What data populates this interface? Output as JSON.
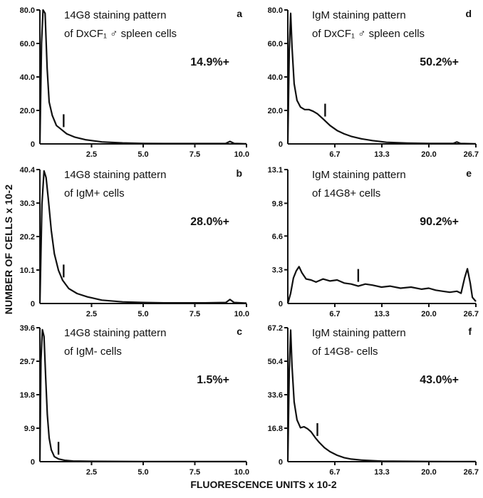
{
  "figure": {
    "ylabel": "NUMBER OF CELLS x 10-2",
    "xlabel": "FLUORESCENCE UNITS x 10-2"
  },
  "chart_data": [
    {
      "type": "line",
      "letter": "a",
      "caption1": "14G8 staining pattern",
      "caption2": "of DxCF₁ ♂ spleen cells",
      "percent": "14.9%+",
      "xlim": [
        0,
        10
      ],
      "ylim": [
        0,
        80
      ],
      "xticks": [
        "2.5",
        "5.0",
        "7.5",
        "10.0"
      ],
      "yticks": [
        "80.0",
        "60.0",
        "40.0",
        "20.0"
      ],
      "ytickvals": [
        80,
        60,
        40,
        20
      ],
      "marker_x": 1.15,
      "x": [
        0,
        0.08,
        0.15,
        0.25,
        0.35,
        0.45,
        0.6,
        0.8,
        1.0,
        1.3,
        1.7,
        2.2,
        3.0,
        4.0,
        5.0,
        6.0,
        7.0,
        8.0,
        9.0,
        9.2,
        9.4,
        10.0
      ],
      "y": [
        0,
        60,
        80,
        78,
        45,
        25,
        17,
        11,
        9,
        6,
        4,
        2.5,
        1.2,
        0.6,
        0.3,
        0.2,
        0.2,
        0.2,
        0.3,
        1.5,
        0.3,
        0.1
      ]
    },
    {
      "type": "line",
      "letter": "b",
      "caption1": "14G8 staining pattern",
      "caption2": "of IgM+ cells",
      "percent": "28.0%+",
      "xlim": [
        0,
        10
      ],
      "ylim": [
        0,
        40.4
      ],
      "xticks": [
        "2.5",
        "5.0",
        "7.5",
        "10.0"
      ],
      "yticks": [
        "40.4",
        "30.3",
        "20.2",
        "10.1"
      ],
      "ytickvals": [
        40.4,
        30.3,
        20.2,
        10.1
      ],
      "marker_x": 1.15,
      "x": [
        0,
        0.1,
        0.2,
        0.3,
        0.4,
        0.55,
        0.7,
        0.9,
        1.1,
        1.4,
        1.8,
        2.3,
        3.0,
        4.0,
        5.0,
        6.0,
        7.0,
        8.0,
        9.0,
        9.2,
        9.4,
        10.0
      ],
      "y": [
        0,
        30,
        40,
        38,
        32,
        22,
        15,
        10,
        7,
        4.5,
        3,
        2,
        1,
        0.5,
        0.3,
        0.2,
        0.2,
        0.2,
        0.3,
        1.2,
        0.3,
        0.1
      ]
    },
    {
      "type": "line",
      "letter": "c",
      "caption1": "14G8 staining pattern",
      "caption2": "of IgM- cells",
      "percent": "1.5%+",
      "xlim": [
        0,
        10
      ],
      "ylim": [
        0,
        39.6
      ],
      "xticks": [
        "2.5",
        "5.0",
        "7.5",
        "10.0"
      ],
      "yticks": [
        "39.6",
        "29.7",
        "19.8",
        "9.9"
      ],
      "ytickvals": [
        39.6,
        29.7,
        19.8,
        9.9
      ],
      "marker_x": 0.9,
      "x": [
        0,
        0.05,
        0.12,
        0.2,
        0.28,
        0.36,
        0.45,
        0.55,
        0.7,
        0.9,
        1.2,
        1.6,
        2.5,
        5.0,
        7.5,
        10.0
      ],
      "y": [
        0,
        30,
        39,
        37,
        25,
        14,
        7,
        3.5,
        1.5,
        0.8,
        0.4,
        0.2,
        0.1,
        0.05,
        0.05,
        0.05
      ]
    },
    {
      "type": "line",
      "letter": "d",
      "caption1": "IgM staining pattern",
      "caption2": "of DxCF₁ ♂ spleen cells",
      "percent": "50.2%+",
      "xlim": [
        0,
        26.7
      ],
      "ylim": [
        0,
        80
      ],
      "xticks": [
        "6.7",
        "13.3",
        "20.0",
        "26.7"
      ],
      "yticks": [
        "80.0",
        "60.0",
        "40.0",
        "20.0"
      ],
      "ytickvals": [
        80,
        60,
        40,
        20
      ],
      "marker_x": 5.3,
      "x": [
        0,
        0.2,
        0.4,
        0.6,
        0.9,
        1.3,
        1.8,
        2.4,
        3.0,
        3.6,
        4.2,
        5.0,
        6.0,
        7.0,
        8.0,
        9.0,
        10.5,
        12.0,
        14.0,
        17.0,
        20.0,
        22.0,
        23.5,
        24.0,
        24.5,
        26.7
      ],
      "y": [
        0,
        55,
        78,
        58,
        36,
        26,
        22,
        20.5,
        20.5,
        19.5,
        18,
        15,
        11,
        8,
        6,
        4.5,
        3,
        2,
        1,
        0.5,
        0.3,
        0.3,
        0.3,
        1.2,
        0.3,
        0.1
      ]
    },
    {
      "type": "line",
      "letter": "e",
      "caption1": "IgM staining pattern",
      "caption2": "of 14G8+ cells",
      "percent": "90.2%+",
      "xlim": [
        0,
        26.7
      ],
      "ylim": [
        0,
        13.1
      ],
      "xticks": [
        "6.7",
        "13.3",
        "20.0",
        "26.7"
      ],
      "yticks": [
        "13.1",
        "9.8",
        "6.6",
        "3.3"
      ],
      "ytickvals": [
        13.1,
        9.8,
        6.6,
        3.3
      ],
      "marker_x": 10.0,
      "x": [
        0,
        0.4,
        0.8,
        1.2,
        1.6,
        2.0,
        2.6,
        3.3,
        4.0,
        5.0,
        6.0,
        7.0,
        8.0,
        9.0,
        10.0,
        11.0,
        12.0,
        13.3,
        14.5,
        16.0,
        17.5,
        19.0,
        20.0,
        21.0,
        22.0,
        23.0,
        24.0,
        24.6,
        25.1,
        25.5,
        25.9,
        26.2,
        26.7
      ],
      "y": [
        0,
        1.0,
        2.5,
        3.2,
        3.6,
        3.0,
        2.4,
        2.3,
        2.1,
        2.4,
        2.2,
        2.3,
        2.0,
        1.9,
        1.7,
        1.9,
        1.8,
        1.6,
        1.7,
        1.5,
        1.6,
        1.4,
        1.5,
        1.3,
        1.2,
        1.1,
        1.2,
        1.0,
        2.5,
        3.4,
        2.0,
        0.6,
        0.2
      ]
    },
    {
      "type": "line",
      "letter": "f",
      "caption1": "IgM staining pattern",
      "caption2": "of 14G8- cells",
      "percent": "43.0%+",
      "xlim": [
        0,
        26.7
      ],
      "ylim": [
        0,
        67.2
      ],
      "xticks": [
        "6.7",
        "13.3",
        "20.0",
        "26.7"
      ],
      "yticks": [
        "67.2",
        "50.4",
        "33.6",
        "16.8"
      ],
      "ytickvals": [
        67.2,
        50.4,
        33.6,
        16.8
      ],
      "marker_x": 4.2,
      "x": [
        0,
        0.2,
        0.4,
        0.6,
        0.9,
        1.3,
        1.8,
        2.3,
        2.8,
        3.3,
        3.9,
        4.5,
        5.2,
        6.0,
        7.0,
        8.0,
        9.0,
        10.5,
        12.0,
        13.3,
        15.0,
        20.0,
        26.7
      ],
      "y": [
        0,
        45,
        66,
        48,
        30,
        21,
        17,
        17.5,
        16.5,
        15,
        12,
        9.5,
        7,
        5,
        3.2,
        2,
        1.3,
        0.8,
        0.5,
        0.3,
        0.2,
        0.1,
        0.05
      ]
    }
  ]
}
